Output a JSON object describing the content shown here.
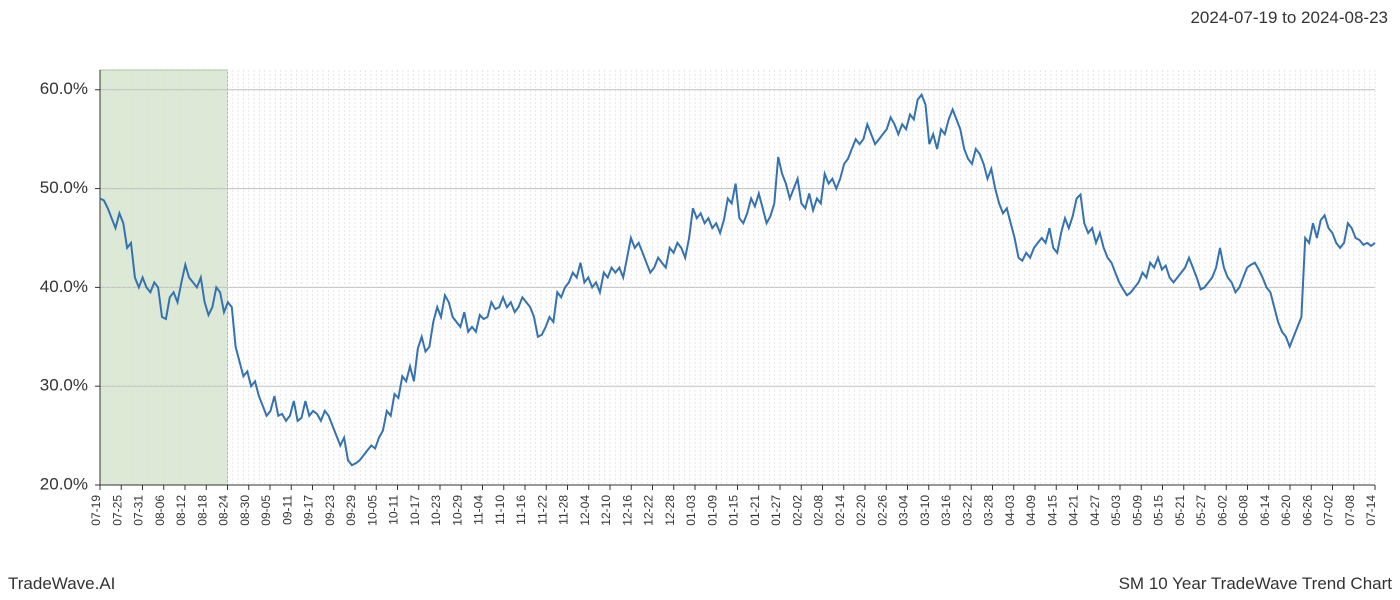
{
  "header": {
    "date_range": "2024-07-19 to 2024-08-23"
  },
  "footer": {
    "left": "TradeWave.AI",
    "right": "SM 10 Year TradeWave Trend Chart"
  },
  "chart": {
    "type": "line",
    "background_color": "#ffffff",
    "line_color": "#3572b0",
    "line_width": 2,
    "highlight_band": {
      "x_start": "07-19",
      "x_end": "08-24",
      "fill": "#dce9d5",
      "stroke": "#a8c49a"
    },
    "grid": {
      "major_color": "#bfbfbf",
      "minor_color": "#e0e0e0",
      "minor_dash": "2 2"
    },
    "axis_color": "#333333",
    "y_axis": {
      "min": 20,
      "max": 62,
      "tick_labels": [
        "20.0%",
        "30.0%",
        "40.0%",
        "50.0%",
        "60.0%"
      ],
      "tick_values": [
        20,
        30,
        40,
        50,
        60
      ],
      "label_fontsize": 17
    },
    "x_axis": {
      "tick_labels": [
        "07-19",
        "07-25",
        "07-31",
        "08-06",
        "08-12",
        "08-18",
        "08-24",
        "08-30",
        "09-05",
        "09-11",
        "09-17",
        "09-23",
        "09-29",
        "10-05",
        "10-11",
        "10-17",
        "10-23",
        "10-29",
        "11-04",
        "11-10",
        "11-16",
        "11-22",
        "11-28",
        "12-04",
        "12-10",
        "12-16",
        "12-22",
        "12-28",
        "01-03",
        "01-09",
        "01-15",
        "01-21",
        "01-27",
        "02-02",
        "02-08",
        "02-14",
        "02-20",
        "02-26",
        "03-04",
        "03-10",
        "03-16",
        "03-22",
        "03-28",
        "04-03",
        "04-09",
        "04-15",
        "04-21",
        "04-27",
        "05-03",
        "05-09",
        "05-15",
        "05-21",
        "05-27",
        "06-02",
        "06-08",
        "06-14",
        "06-20",
        "06-26",
        "07-02",
        "07-08",
        "07-14"
      ],
      "label_fontsize": 12,
      "label_rotation": -90
    },
    "series": {
      "name": "SM trend",
      "values": [
        49.0,
        48.8,
        48.0,
        47.0,
        46.0,
        47.5,
        46.5,
        44.0,
        44.5,
        41.0,
        40.0,
        41.0,
        40.0,
        39.5,
        40.5,
        40.0,
        37.0,
        36.8,
        39.0,
        39.5,
        38.5,
        40.5,
        42.3,
        41.0,
        40.5,
        40.0,
        41.0,
        38.5,
        37.2,
        38.0,
        40.0,
        39.5,
        37.5,
        38.5,
        38.0,
        34.0,
        32.5,
        31.0,
        31.5,
        30.0,
        30.5,
        29.0,
        28.0,
        27.0,
        27.5,
        29.0,
        27.0,
        27.2,
        26.5,
        27.0,
        28.5,
        26.5,
        26.8,
        28.5,
        27.0,
        27.5,
        27.2,
        26.5,
        27.5,
        27.0,
        26.0,
        25.0,
        24.0,
        24.8,
        22.5,
        22.0,
        22.2,
        22.5,
        23.0,
        23.5,
        24.0,
        23.7,
        24.8,
        25.5,
        27.5,
        27.0,
        29.2,
        28.8,
        31.0,
        30.5,
        32.0,
        30.5,
        33.8,
        35.0,
        33.5,
        34.0,
        36.5,
        38.0,
        37.0,
        39.2,
        38.5,
        37.0,
        36.5,
        36.0,
        37.5,
        35.5,
        36.0,
        35.5,
        37.2,
        36.8,
        37.0,
        38.5,
        37.8,
        38.0,
        39.0,
        38.0,
        38.5,
        37.5,
        38.0,
        39.0,
        38.5,
        38.0,
        37.0,
        35.0,
        35.2,
        36.0,
        37.0,
        36.5,
        39.5,
        39.0,
        40.0,
        40.5,
        41.5,
        41.0,
        42.5,
        40.5,
        41.0,
        40.0,
        40.5,
        39.5,
        41.5,
        41.0,
        42.0,
        41.5,
        42.0,
        41.0,
        43.0,
        45.0,
        44.0,
        44.5,
        43.5,
        42.5,
        41.5,
        42.0,
        43.0,
        42.5,
        42.0,
        44.0,
        43.5,
        44.5,
        44.0,
        43.0,
        45.0,
        48.0,
        47.0,
        47.5,
        46.5,
        47.0,
        46.0,
        46.5,
        45.5,
        46.8,
        49.0,
        48.5,
        50.5,
        47.0,
        46.5,
        47.5,
        49.0,
        48.2,
        49.5,
        48.0,
        46.5,
        47.2,
        48.5,
        53.2,
        51.5,
        50.5,
        49.0,
        50.0,
        51.0,
        48.5,
        48.0,
        49.5,
        47.8,
        49.0,
        48.5,
        51.5,
        50.5,
        51.0,
        50.0,
        51.0,
        52.5,
        53.0,
        54.0,
        55.0,
        54.5,
        55.0,
        56.5,
        55.5,
        54.5,
        55.0,
        55.5,
        56.0,
        57.2,
        56.5,
        55.5,
        56.5,
        56.0,
        57.5,
        57.0,
        59.0,
        59.5,
        58.5,
        54.5,
        55.5,
        54.0,
        56.0,
        55.5,
        57.0,
        58.0,
        57.0,
        56.0,
        54.0,
        53.0,
        52.5,
        54.0,
        53.5,
        52.5,
        51.0,
        52.0,
        50.0,
        48.5,
        47.5,
        48.0,
        46.5,
        45.0,
        43.0,
        42.7,
        43.5,
        43.0,
        44.0,
        44.5,
        45.0,
        44.5,
        46.0,
        44.0,
        43.5,
        45.5,
        47.0,
        46.0,
        47.2,
        49.0,
        49.4,
        46.5,
        45.5,
        46.0,
        44.5,
        45.5,
        44.0,
        43.0,
        42.5,
        41.5,
        40.5,
        39.8,
        39.2,
        39.5,
        40.0,
        40.5,
        41.5,
        41.0,
        42.5,
        42.0,
        43.0,
        41.8,
        42.2,
        41.0,
        40.5,
        41.0,
        41.5,
        42.0,
        43.0,
        42.0,
        41.0,
        39.8,
        40.0,
        40.5,
        41.0,
        42.0,
        44.0,
        42.0,
        41.0,
        40.5,
        39.5,
        40.0,
        41.0,
        42.0,
        42.3,
        42.5,
        41.8,
        41.0,
        40.0,
        39.5,
        38.0,
        36.5,
        35.5,
        35.0,
        34.0,
        35.0,
        36.0,
        37.0,
        45.0,
        44.5,
        46.5,
        45.0,
        46.8,
        47.3,
        46.0,
        45.5,
        44.5,
        44.0,
        44.5,
        46.5,
        46.0,
        45.0,
        44.8,
        44.3,
        44.5,
        44.2,
        44.5
      ]
    }
  }
}
